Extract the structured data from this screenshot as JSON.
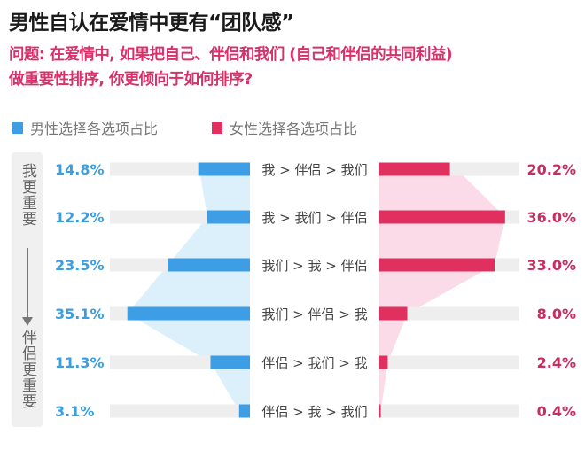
{
  "title": "男性自认在爱情中更有“团队感”",
  "question_line1": "问题: 在爱情中, 如果把自己、伴侣和我们 (自己和伴侣的共同利益)",
  "question_line2": "做重要性排序, 你更倾向于如何排序?",
  "side_label_top": "我更重要",
  "side_label_bottom": "伴侣更重要",
  "colors": {
    "male": "#3d9ee6",
    "female": "#e0305f",
    "male_fill": "#dcf0fb",
    "female_fill": "#fadbe7",
    "track": "#eeeeee",
    "male_text": "#3a9ee0",
    "female_text": "#c92d60"
  },
  "chart_data": {
    "type": "bar",
    "title": "男性自认在爱情中更有“团队感”",
    "categories": [
      "我 > 伴侣 > 我们",
      "我 > 我们 > 伴侣",
      "我们 > 我 > 伴侣",
      "我们 > 伴侣 > 我",
      "伴侣 > 我们 > 我",
      "伴侣 > 我 > 我们"
    ],
    "series": [
      {
        "name": "男性选择各选项占比",
        "values": [
          14.8,
          12.2,
          23.5,
          35.1,
          11.3,
          3.1
        ],
        "labels": [
          "14.8%",
          "12.2%",
          "23.5%",
          "35.1%",
          "11.3%",
          "3.1%"
        ]
      },
      {
        "name": "女性选择各选项占比",
        "values": [
          20.2,
          36.0,
          33.0,
          8.0,
          2.4,
          0.4
        ],
        "labels": [
          "20.2%",
          "36.0%",
          "33.0%",
          "8.0%",
          "2.4%",
          "0.4%"
        ]
      }
    ],
    "xlim": [
      0,
      40
    ],
    "legend": "top-left"
  }
}
